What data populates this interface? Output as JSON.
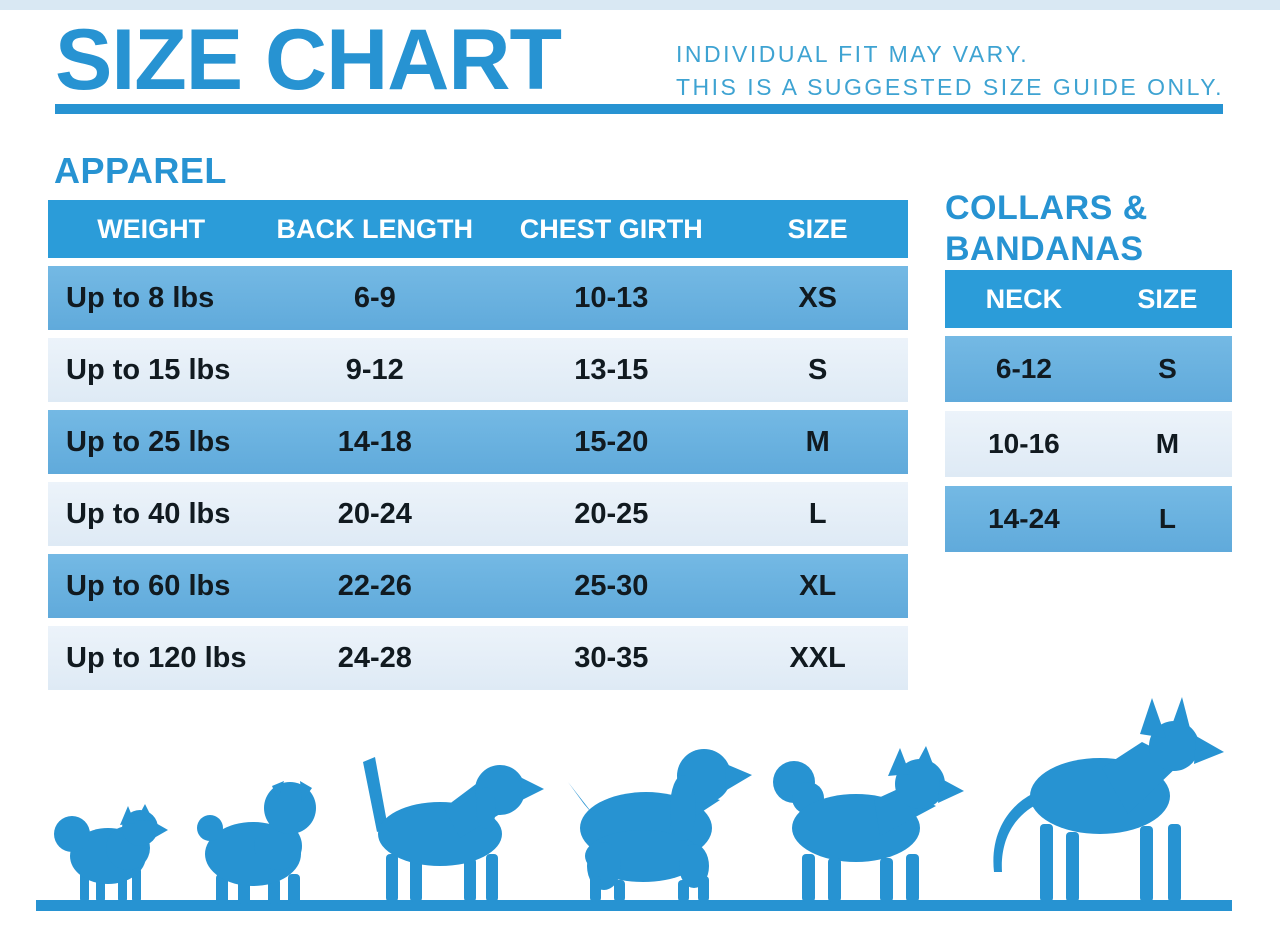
{
  "header": {
    "title": "SIZE CHART",
    "disclaimer_line1": "INDIVIDUAL FIT MAY VARY.",
    "disclaimer_line2": "THIS IS A SUGGESTED SIZE GUIDE ONLY."
  },
  "apparel": {
    "heading": "APPAREL",
    "columns": [
      "WEIGHT",
      "BACK LENGTH",
      "CHEST GIRTH",
      "SIZE"
    ],
    "rows": [
      [
        "Up to 8 lbs",
        "6-9",
        "10-13",
        "XS"
      ],
      [
        "Up to 15 lbs",
        "9-12",
        "13-15",
        "S"
      ],
      [
        "Up to 25 lbs",
        "14-18",
        "15-20",
        "M"
      ],
      [
        "Up to 40 lbs",
        "20-24",
        "20-25",
        "L"
      ],
      [
        "Up to 60 lbs",
        "22-26",
        "25-30",
        "XL"
      ],
      [
        "Up to 120 lbs",
        "24-28",
        "30-35",
        "XXL"
      ]
    ]
  },
  "collars": {
    "heading_line1": "COLLARS &",
    "heading_line2": "BANDANAS",
    "columns": [
      "NECK",
      "SIZE"
    ],
    "rows": [
      [
        "6-12",
        "S"
      ],
      [
        "10-16",
        "M"
      ],
      [
        "14-24",
        "L"
      ]
    ]
  },
  "dogs": {
    "breeds": [
      "pomeranian",
      "pug",
      "beagle",
      "cocker-spaniel",
      "husky",
      "great-dane"
    ]
  },
  "colors": {
    "primary_blue": "#2793D2",
    "table_header_blue": "#2B9CD9",
    "row_blue": "#6BB3DF",
    "row_light": "#E5EFF8",
    "disclaimer_blue": "#3EA3D2",
    "cell_text": "#111A20"
  }
}
